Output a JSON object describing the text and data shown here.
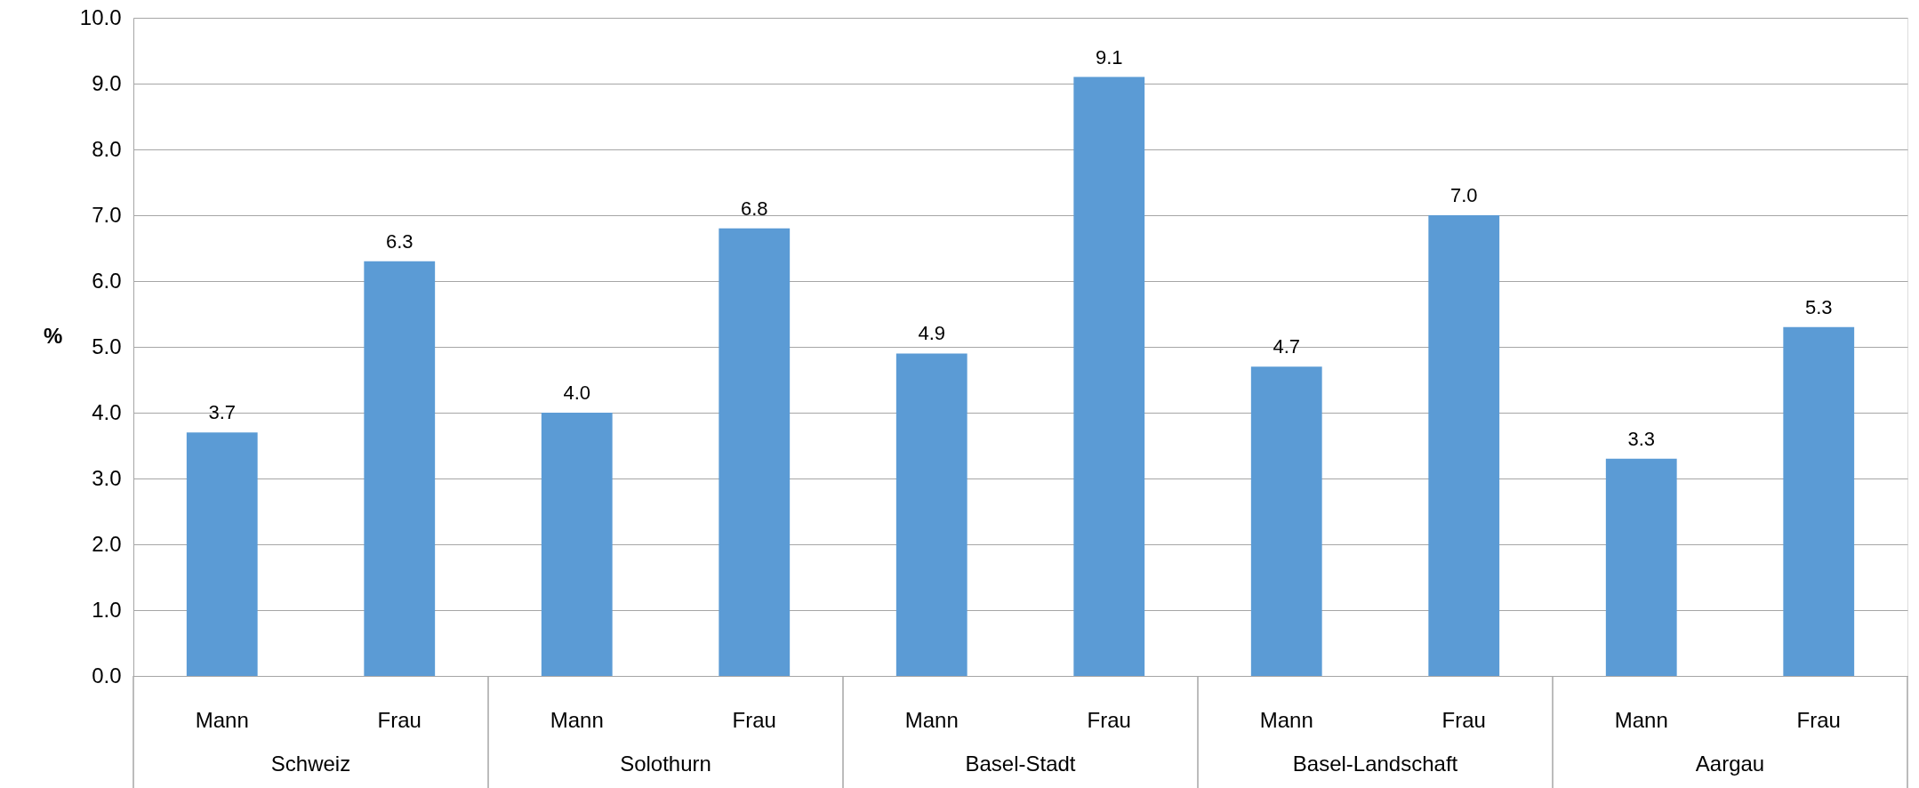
{
  "chart_data": {
    "type": "bar",
    "ylabel": "%",
    "categories": [
      "Mann",
      "Frau",
      "Mann",
      "Frau",
      "Mann",
      "Frau",
      "Mann",
      "Frau",
      "Mann",
      "Frau"
    ],
    "values": [
      3.7,
      6.3,
      4.0,
      6.8,
      4.9,
      9.1,
      4.7,
      7.0,
      3.3,
      5.3
    ],
    "color": "#5b9bd5",
    "value_labels": [
      "3.7",
      "6.3",
      "4.0",
      "6.8",
      "4.9",
      "9.1",
      "4.7",
      "7.0",
      "3.3",
      "5.3"
    ],
    "annotations": [
      "Schweiz",
      "Solothurn",
      "Basel-Stadt",
      "Basel-Landschaft",
      "Aargau"
    ],
    "ylim": [
      0,
      10
    ],
    "yticks": [
      {
        "value": 0,
        "label": "0.0"
      },
      {
        "value": 1,
        "label": "1.0"
      },
      {
        "value": 2,
        "label": "2.0"
      },
      {
        "value": 3,
        "label": "3.0"
      },
      {
        "value": 4,
        "label": "4.0"
      },
      {
        "value": 5,
        "label": "5.0"
      },
      {
        "value": 6,
        "label": "6.0"
      },
      {
        "value": 7,
        "label": "7.0"
      },
      {
        "value": 8,
        "label": "8.0"
      },
      {
        "value": 9,
        "label": "9.0"
      },
      {
        "value": 10,
        "label": "10.0"
      }
    ],
    "grid": "y"
  }
}
